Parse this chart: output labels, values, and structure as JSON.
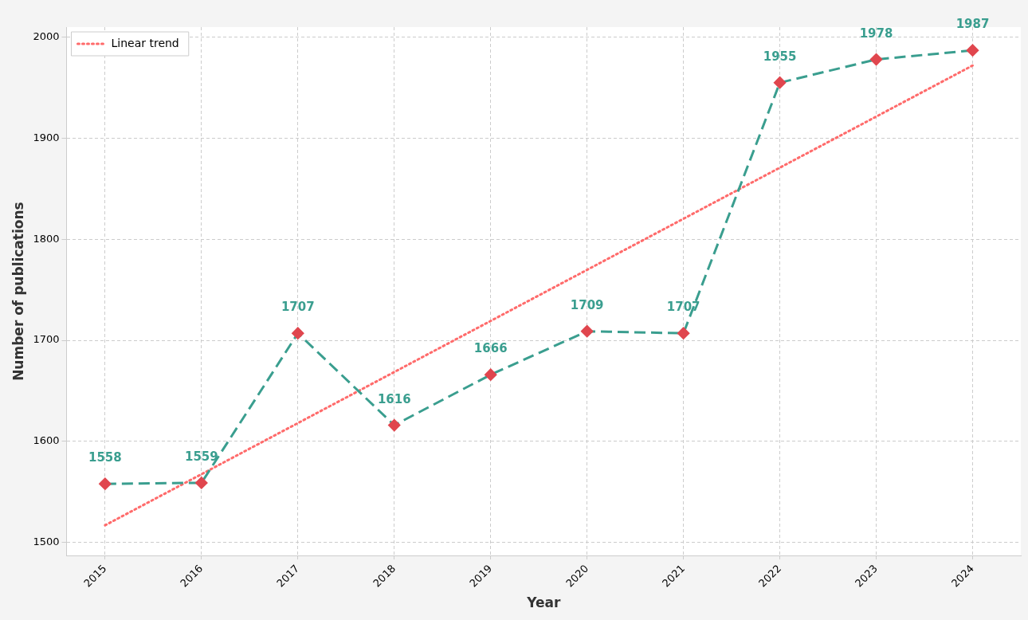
{
  "chart_data": {
    "type": "line",
    "xlabel": "Year",
    "ylabel": "Number of publications",
    "x": [
      2015,
      2016,
      2017,
      2018,
      2019,
      2020,
      2021,
      2022,
      2023,
      2024
    ],
    "series": [
      {
        "color": "#3a9e8f",
        "values": [
          1558,
          1559,
          1707,
          1616,
          1666,
          1709,
          1707,
          1955,
          1978,
          1987
        ],
        "marker": "diamond",
        "colors": [
          "#e0464e",
          "#e0464e",
          "#e0464e",
          "#e0464e",
          "#e0464e",
          "#e0464e",
          "#e0464e",
          "#e0464e",
          "#e0464e",
          "#e0464e"
        ],
        "line_style": "dashed",
        "data_labels": true
      },
      {
        "name": "Linear trend",
        "color": "#ff6b6b",
        "x": [
          2015,
          2024
        ],
        "values": [
          1517,
          1972
        ],
        "marker": "none",
        "line_style": "dotted"
      }
    ],
    "xlim": [
      2014.6,
      2024.5
    ],
    "xticks": [
      2015,
      2016,
      2017,
      2018,
      2019,
      2020,
      2021,
      2022,
      2023,
      2024
    ],
    "ylim": [
      1487,
      2010
    ],
    "yticks": [
      1500,
      1600,
      1700,
      1800,
      1900,
      2000
    ],
    "grid": true,
    "legend": "top left"
  }
}
